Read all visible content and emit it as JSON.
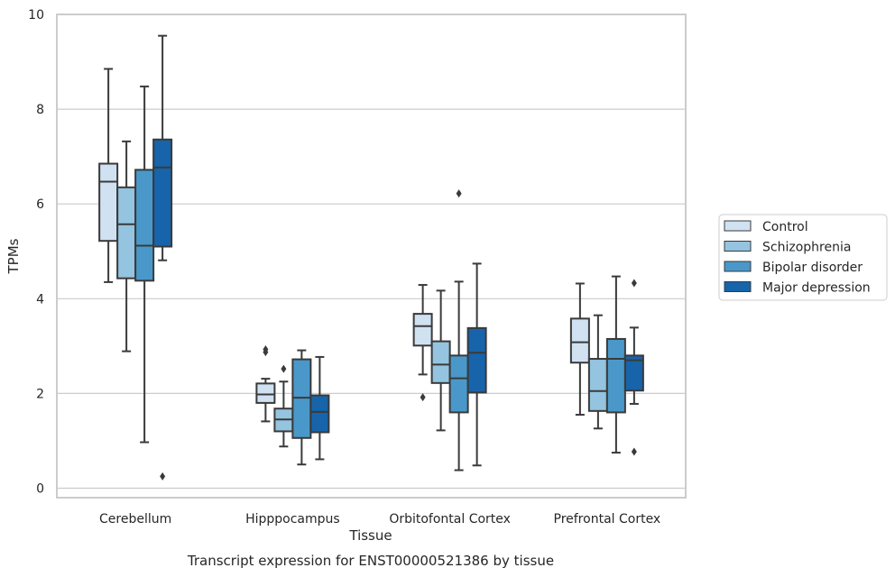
{
  "chart_data": {
    "type": "box",
    "categories": [
      "Cerebellum",
      "Hipppocampus",
      "Orbitofontal Cortex",
      "Prefrontal Cortex"
    ],
    "xlabel": "Tissue",
    "ylabel": "TPMs",
    "caption": "Transcript expression for ENST00000521386 by tissue",
    "ylim": [
      -0.2,
      10
    ],
    "yticks": [
      0,
      2,
      4,
      6,
      8,
      10
    ],
    "grid": "horizontal",
    "legend_position": "right",
    "series": [
      {
        "name": "Control",
        "color": "#d0e1f2",
        "boxes": [
          {
            "whisker_low": 4.35,
            "q1": 5.22,
            "median": 6.47,
            "q3": 6.85,
            "whisker_high": 8.85,
            "outliers": []
          },
          {
            "whisker_low": 1.41,
            "q1": 1.8,
            "median": 1.98,
            "q3": 2.21,
            "whisker_high": 2.31,
            "outliers": [
              2.87,
              2.93
            ]
          },
          {
            "whisker_low": 2.4,
            "q1": 3.01,
            "median": 3.42,
            "q3": 3.68,
            "whisker_high": 4.29,
            "outliers": [
              1.92
            ]
          },
          {
            "whisker_low": 1.55,
            "q1": 2.65,
            "median": 3.08,
            "q3": 3.58,
            "whisker_high": 4.32,
            "outliers": []
          }
        ]
      },
      {
        "name": "Schizophrenia",
        "color": "#94c4df",
        "boxes": [
          {
            "whisker_low": 2.89,
            "q1": 4.43,
            "median": 5.57,
            "q3": 6.35,
            "whisker_high": 7.32,
            "outliers": []
          },
          {
            "whisker_low": 0.88,
            "q1": 1.2,
            "median": 1.45,
            "q3": 1.68,
            "whisker_high": 2.25,
            "outliers": [
              2.52
            ]
          },
          {
            "whisker_low": 1.22,
            "q1": 2.22,
            "median": 2.61,
            "q3": 3.1,
            "whisker_high": 4.17,
            "outliers": []
          },
          {
            "whisker_low": 1.26,
            "q1": 1.63,
            "median": 2.05,
            "q3": 2.73,
            "whisker_high": 3.65,
            "outliers": []
          }
        ]
      },
      {
        "name": "Bipolar disorder",
        "color": "#4a98c9",
        "boxes": [
          {
            "whisker_low": 0.97,
            "q1": 4.38,
            "median": 5.12,
            "q3": 6.72,
            "whisker_high": 8.48,
            "outliers": []
          },
          {
            "whisker_low": 0.5,
            "q1": 1.06,
            "median": 1.91,
            "q3": 2.72,
            "whisker_high": 2.91,
            "outliers": []
          },
          {
            "whisker_low": 0.38,
            "q1": 1.6,
            "median": 2.32,
            "q3": 2.8,
            "whisker_high": 4.36,
            "outliers": [
              6.22
            ]
          },
          {
            "whisker_low": 0.75,
            "q1": 1.6,
            "median": 2.73,
            "q3": 3.15,
            "whisker_high": 4.47,
            "outliers": []
          }
        ]
      },
      {
        "name": "Major depression",
        "color": "#1764ab",
        "boxes": [
          {
            "whisker_low": 4.81,
            "q1": 5.1,
            "median": 6.77,
            "q3": 7.36,
            "whisker_high": 9.55,
            "outliers": [
              0.25
            ]
          },
          {
            "whisker_low": 0.61,
            "q1": 1.18,
            "median": 1.61,
            "q3": 1.96,
            "whisker_high": 2.77,
            "outliers": []
          },
          {
            "whisker_low": 0.48,
            "q1": 2.02,
            "median": 2.86,
            "q3": 3.38,
            "whisker_high": 4.74,
            "outliers": []
          },
          {
            "whisker_low": 1.78,
            "q1": 2.06,
            "median": 2.7,
            "q3": 2.8,
            "whisker_high": 3.39,
            "outliers": [
              4.33,
              0.77
            ]
          }
        ]
      }
    ]
  }
}
